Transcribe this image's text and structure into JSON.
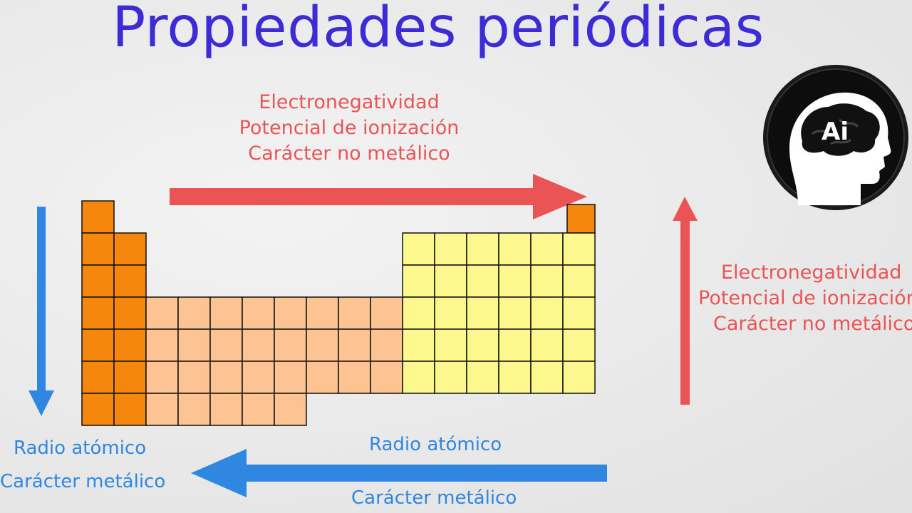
{
  "title": "Propiedades periódicas",
  "top_label": {
    "line1": "Electronegatividad",
    "line2": "Potencial de ionización",
    "line3": "Carácter no metálico"
  },
  "right_label": {
    "line1": "Electronegatividad",
    "line2": "Potencial de ionización",
    "line3": "Carácter no metálico"
  },
  "left_label": {
    "line1": "Radio atómico",
    "line2": "Carácter metálico"
  },
  "bottom_label": {
    "line1": "Radio atómico",
    "line2": "Carácter metálico"
  },
  "logo_text": "Ai",
  "colors": {
    "title": "#3d2bd6",
    "red": "#ea5454",
    "blue": "#2f87e1",
    "alkali": "#f5870f",
    "transition": "#fdc392",
    "nonmetal": "#fcf88d",
    "noble_top": "#f5870f"
  },
  "periodic_table": {
    "group_colors": [
      "alkali",
      "alkali",
      "transition",
      "transition",
      "transition",
      "transition",
      "transition",
      "transition",
      "transition",
      "transition",
      "nonmetal",
      "nonmetal",
      "nonmetal",
      "nonmetal",
      "nonmetal",
      "nonmetal"
    ],
    "rows": [
      [
        1,
        0,
        0,
        0,
        0,
        0,
        0,
        0,
        0,
        0,
        0,
        0,
        0,
        0,
        0,
        2
      ],
      [
        1,
        1,
        0,
        0,
        0,
        0,
        0,
        0,
        0,
        0,
        1,
        1,
        1,
        1,
        1,
        1
      ],
      [
        1,
        1,
        0,
        0,
        0,
        0,
        0,
        0,
        0,
        0,
        1,
        1,
        1,
        1,
        1,
        1
      ],
      [
        1,
        1,
        1,
        1,
        1,
        1,
        1,
        1,
        1,
        1,
        1,
        1,
        1,
        1,
        1,
        1
      ],
      [
        1,
        1,
        1,
        1,
        1,
        1,
        1,
        1,
        1,
        1,
        1,
        1,
        1,
        1,
        1,
        1
      ],
      [
        1,
        1,
        1,
        1,
        1,
        1,
        1,
        1,
        1,
        1,
        1,
        1,
        1,
        1,
        1,
        1
      ],
      [
        1,
        1,
        1,
        1,
        1,
        1,
        1,
        0,
        0,
        0,
        0,
        0,
        0,
        0,
        0,
        0
      ]
    ]
  }
}
